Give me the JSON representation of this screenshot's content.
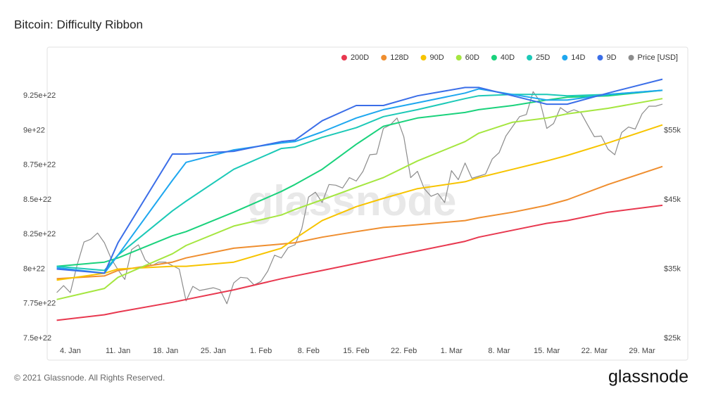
{
  "chart_data": {
    "type": "line",
    "title": "Bitcoin: Difficulty Ribbon",
    "watermark": "glassnode",
    "footer": "© 2021 Glassnode. All Rights Reserved.",
    "logo": "glassnode",
    "legend": "top-right",
    "grid": false,
    "xlim": [
      "2. Jan",
      "1. Apr"
    ],
    "xticks": [
      "4. Jan",
      "11. Jan",
      "18. Jan",
      "25. Jan",
      "1. Feb",
      "8. Feb",
      "15. Feb",
      "22. Feb",
      "1. Mar",
      "8. Mar",
      "15. Mar",
      "22. Mar",
      "29. Mar"
    ],
    "ylim": [
      7.5e+22,
      9.5e+22
    ],
    "yticks": [
      {
        "value": 7.5e+22,
        "label": "7.5e+22"
      },
      {
        "value": 7.75e+22,
        "label": "7.75e+22"
      },
      {
        "value": 8e+22,
        "label": "8e+22"
      },
      {
        "value": 8.25e+22,
        "label": "8.25e+22"
      },
      {
        "value": 8.5e+22,
        "label": "8.5e+22"
      },
      {
        "value": 8.75e+22,
        "label": "8.75e+22"
      },
      {
        "value": 9e+22,
        "label": "9e+22"
      },
      {
        "value": 9.25e+22,
        "label": "9.25e+22"
      }
    ],
    "y2lim": [
      25000,
      65000
    ],
    "y2ticks": [
      {
        "value": 25000,
        "label": "$25k"
      },
      {
        "value": 35000,
        "label": "$35k"
      },
      {
        "value": 45000,
        "label": "$45k"
      },
      {
        "value": 55000,
        "label": "$55k"
      }
    ],
    "x": [
      "2. Jan",
      "9. Jan",
      "11. Jan",
      "19. Jan",
      "21. Jan",
      "28. Jan",
      "4. Feb",
      "6. Feb",
      "10. Feb",
      "15. Feb",
      "19. Feb",
      "24. Feb",
      "3. Mar",
      "5. Mar",
      "10. Mar",
      "15. Mar",
      "18. Mar",
      "24. Mar",
      "1. Apr"
    ],
    "series": [
      {
        "name": "200D",
        "color": "#e8384f",
        "values": [
          7.63e+22,
          7.67e+22,
          7.69e+22,
          7.76e+22,
          7.78e+22,
          7.85e+22,
          7.93e+22,
          7.95e+22,
          7.99e+22,
          8.04e+22,
          8.08e+22,
          8.13e+22,
          8.2e+22,
          8.23e+22,
          8.28e+22,
          8.33e+22,
          8.35e+22,
          8.41e+22,
          8.46e+22
        ]
      },
      {
        "name": "128D",
        "color": "#ef8e2f",
        "values": [
          7.93e+22,
          7.95e+22,
          7.99e+22,
          8.05e+22,
          8.08e+22,
          8.15e+22,
          8.18e+22,
          8.19e+22,
          8.23e+22,
          8.27e+22,
          8.3e+22,
          8.32e+22,
          8.35e+22,
          8.37e+22,
          8.41e+22,
          8.46e+22,
          8.5e+22,
          8.61e+22,
          8.74e+22
        ]
      },
      {
        "name": "90D",
        "color": "#f7c400",
        "values": [
          7.92e+22,
          7.97e+22,
          8e+22,
          8.02e+22,
          8.02e+22,
          8.05e+22,
          8.15e+22,
          8.22e+22,
          8.35e+22,
          8.45e+22,
          8.51e+22,
          8.58e+22,
          8.63e+22,
          8.66e+22,
          8.72e+22,
          8.78e+22,
          8.82e+22,
          8.91e+22,
          9.04e+22
        ]
      },
      {
        "name": "60D",
        "color": "#a5e640",
        "values": [
          7.78e+22,
          7.86e+22,
          7.94e+22,
          8.11e+22,
          8.17e+22,
          8.31e+22,
          8.39e+22,
          8.43e+22,
          8.5e+22,
          8.59e+22,
          8.66e+22,
          8.78e+22,
          8.92e+22,
          8.98e+22,
          9.06e+22,
          9.09e+22,
          9.12e+22,
          9.16e+22,
          9.23e+22
        ]
      },
      {
        "name": "40D",
        "color": "#1ad27c",
        "values": [
          8.02e+22,
          8.05e+22,
          8.08e+22,
          8.24e+22,
          8.27e+22,
          8.41e+22,
          8.56e+22,
          8.61e+22,
          8.72e+22,
          8.9e+22,
          9.03e+22,
          9.09e+22,
          9.13e+22,
          9.15e+22,
          9.18e+22,
          9.22e+22,
          9.24e+22,
          9.25e+22,
          9.29e+22
        ]
      },
      {
        "name": "25D",
        "color": "#1cc9b7",
        "values": [
          8.02e+22,
          7.99e+22,
          8.1e+22,
          8.42e+22,
          8.49e+22,
          8.72e+22,
          8.87e+22,
          8.88e+22,
          8.95e+22,
          9.02e+22,
          9.1e+22,
          9.15e+22,
          9.23e+22,
          9.25e+22,
          9.26e+22,
          9.26e+22,
          9.25e+22,
          9.26e+22,
          9.29e+22
        ]
      },
      {
        "name": "14D",
        "color": "#1ea7ef",
        "values": [
          8.01e+22,
          7.97e+22,
          8.1e+22,
          8.64e+22,
          8.77e+22,
          8.86e+22,
          8.91e+22,
          8.92e+22,
          8.99e+22,
          9.09e+22,
          9.15e+22,
          9.2e+22,
          9.27e+22,
          9.3e+22,
          9.26e+22,
          9.22e+22,
          9.22e+22,
          9.26e+22,
          9.29e+22
        ]
      },
      {
        "name": "9D",
        "color": "#3b6ee8",
        "values": [
          8e+22,
          7.97e+22,
          8.19e+22,
          8.83e+22,
          8.83e+22,
          8.85e+22,
          8.92e+22,
          8.93e+22,
          9.07e+22,
          9.18e+22,
          9.18e+22,
          9.25e+22,
          9.31e+22,
          9.31e+22,
          9.25e+22,
          9.19e+22,
          9.19e+22,
          9.27e+22,
          9.37e+22
        ]
      },
      {
        "name": "Price [USD]",
        "color": "#8c8c8c",
        "axis": "y2",
        "x": [
          "2. Jan",
          "3. Jan",
          "4. Jan",
          "5. Jan",
          "6. Jan",
          "7. Jan",
          "8. Jan",
          "9. Jan",
          "10. Jan",
          "11. Jan",
          "12. Jan",
          "13. Jan",
          "14. Jan",
          "15. Jan",
          "16. Jan",
          "17. Jan",
          "18. Jan",
          "19. Jan",
          "20. Jan",
          "21. Jan",
          "22. Jan",
          "23. Jan",
          "24. Jan",
          "25. Jan",
          "26. Jan",
          "27. Jan",
          "28. Jan",
          "29. Jan",
          "30. Jan",
          "31. Jan",
          "1. Feb",
          "2. Feb",
          "3. Feb",
          "4. Feb",
          "5. Feb",
          "6. Feb",
          "7. Feb",
          "8. Feb",
          "9. Feb",
          "10. Feb",
          "11. Feb",
          "12. Feb",
          "13. Feb",
          "14. Feb",
          "15. Feb",
          "16. Feb",
          "17. Feb",
          "18. Feb",
          "19. Feb",
          "20. Feb",
          "21. Feb",
          "22. Feb",
          "23. Feb",
          "24. Feb",
          "25. Feb",
          "26. Feb",
          "27. Feb",
          "28. Feb",
          "1. Mar",
          "2. Mar",
          "3. Mar",
          "4. Mar",
          "5. Mar",
          "6. Mar",
          "7. Mar",
          "8. Mar",
          "9. Mar",
          "10. Mar",
          "11. Mar",
          "12. Mar",
          "13. Mar",
          "14. Mar",
          "15. Mar",
          "16. Mar",
          "17. Mar",
          "18. Mar",
          "19. Mar",
          "20. Mar",
          "21. Mar",
          "22. Mar",
          "23. Mar",
          "24. Mar",
          "25. Mar",
          "26. Mar",
          "27. Mar",
          "28. Mar",
          "29. Mar",
          "30. Mar",
          "31. Mar",
          "1. Apr"
        ],
        "values": [
          31600,
          32600,
          31600,
          35600,
          38900,
          39300,
          40200,
          38800,
          36500,
          34900,
          33500,
          37800,
          38500,
          36300,
          35500,
          36000,
          36000,
          35500,
          35000,
          30400,
          32500,
          31900,
          32100,
          32300,
          32000,
          30000,
          33000,
          33800,
          33700,
          32700,
          33200,
          34700,
          37000,
          36600,
          38100,
          38500,
          40800,
          45400,
          46100,
          44600,
          47200,
          47100,
          46700,
          48200,
          47700,
          49100,
          51500,
          51600,
          55300,
          55800,
          56800,
          54100,
          48200,
          49100,
          46600,
          45500,
          45900,
          44600,
          49200,
          47900,
          50300,
          48100,
          48400,
          48700,
          50900,
          51800,
          54200,
          55600,
          57000,
          57300,
          60600,
          59200,
          55300,
          56000,
          58300,
          57600,
          58000,
          57600,
          55800,
          54100,
          54200,
          52300,
          51500,
          54700,
          55500,
          55200,
          57400,
          58500,
          58500,
          58800
        ]
      }
    ]
  }
}
